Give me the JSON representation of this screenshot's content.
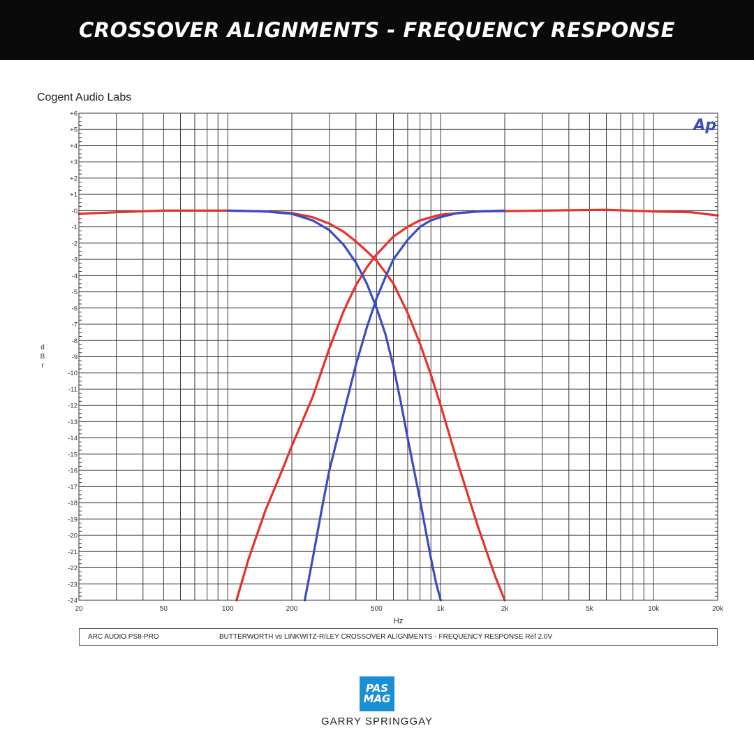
{
  "banner": {
    "title": "CROSSOVER ALIGNMENTS - FREQUENCY RESPONSE"
  },
  "company": "Cogent Audio Labs",
  "ap_logo": "Ap",
  "colors": {
    "butterworth": "#3b4cc0",
    "linkwitz_riley": "#e8302a",
    "banner_bg": "#0a0a0a",
    "logo_bg": "#1a8fd6"
  },
  "footer": {
    "device": "ARC AUDIO  PS8-PRO",
    "description": "BUTTERWORTH vs LINKWITZ-RILEY CROSSOVER ALIGNMENTS  -   FREQUENCY RESPONSE      Ref 2.0V"
  },
  "brand": {
    "logo_line1": "PAS",
    "logo_line2": "MAG",
    "credit": "GARRY SPRINGGAY"
  },
  "chart_data": {
    "type": "line",
    "xscale": "log",
    "xlim": [
      20,
      20000
    ],
    "ylim": [
      -24,
      6
    ],
    "xlabel": "Hz",
    "ylabel": "dBr",
    "grid": true,
    "x_tick_labels": [
      {
        "value": 20,
        "label": "20"
      },
      {
        "value": 50,
        "label": "50"
      },
      {
        "value": 100,
        "label": "100"
      },
      {
        "value": 200,
        "label": "200"
      },
      {
        "value": 500,
        "label": "500"
      },
      {
        "value": 1000,
        "label": "1k"
      },
      {
        "value": 2000,
        "label": "2k"
      },
      {
        "value": 5000,
        "label": "5k"
      },
      {
        "value": 10000,
        "label": "10k"
      },
      {
        "value": 20000,
        "label": "20k"
      }
    ],
    "y_tick_labels": [
      "+6",
      "+5",
      "+4",
      "+3",
      "+2",
      "+1",
      "-0",
      "-1",
      "-2",
      "-3",
      "-4",
      "-5",
      "-6",
      "-7",
      "-8",
      "-9",
      "-10",
      "-11",
      "-12",
      "-13",
      "-14",
      "-15",
      "-16",
      "-17",
      "-18",
      "-19",
      "-20",
      "-21",
      "-22",
      "-23",
      "-24"
    ],
    "series": [
      {
        "color_key": "linkwitz_riley",
        "x": [
          20,
          30,
          50,
          100,
          150,
          200,
          250,
          300,
          350,
          400,
          450,
          500,
          550,
          600,
          700,
          800,
          900,
          1000,
          1200,
          1500,
          1800,
          2000
        ],
        "y": [
          -0.2,
          -0.1,
          0,
          0,
          -0.05,
          -0.15,
          -0.4,
          -0.8,
          -1.3,
          -1.9,
          -2.5,
          -3.1,
          -3.8,
          -4.5,
          -6.3,
          -8.2,
          -10.1,
          -12,
          -15.5,
          -19.5,
          -22.5,
          -24
        ]
      },
      {
        "color_key": "linkwitz_riley",
        "x": [
          110,
          125,
          150,
          180,
          200,
          250,
          300,
          350,
          400,
          450,
          500,
          600,
          700,
          800,
          1000,
          1500,
          3000,
          6000,
          10000,
          15000,
          20000
        ],
        "y": [
          -24,
          -21.5,
          -18.5,
          -16,
          -14.5,
          -11.5,
          -8.5,
          -6.2,
          -4.6,
          -3.5,
          -2.7,
          -1.6,
          -1,
          -0.6,
          -0.25,
          -0.05,
          0,
          0.05,
          -0.05,
          -0.1,
          -0.3
        ]
      },
      {
        "color_key": "butterworth",
        "x": [
          100,
          150,
          200,
          250,
          300,
          350,
          400,
          450,
          500,
          550,
          600,
          650,
          700,
          750,
          800,
          850,
          900,
          950,
          1000
        ],
        "y": [
          0,
          -0.05,
          -0.2,
          -0.6,
          -1.2,
          -2.1,
          -3.2,
          -4.5,
          -6,
          -7.6,
          -9.6,
          -11.8,
          -14,
          -16,
          -17.8,
          -19.7,
          -21.4,
          -22.9,
          -24
        ]
      },
      {
        "color_key": "butterworth",
        "x": [
          230,
          250,
          280,
          300,
          350,
          400,
          450,
          500,
          550,
          600,
          700,
          800,
          900,
          1000,
          1200,
          1500,
          2000
        ],
        "y": [
          -24,
          -21.5,
          -18,
          -16,
          -12.5,
          -9.5,
          -7.2,
          -5.4,
          -4.1,
          -3,
          -1.8,
          -1,
          -0.6,
          -0.4,
          -0.15,
          -0.05,
          0
        ]
      }
    ]
  }
}
